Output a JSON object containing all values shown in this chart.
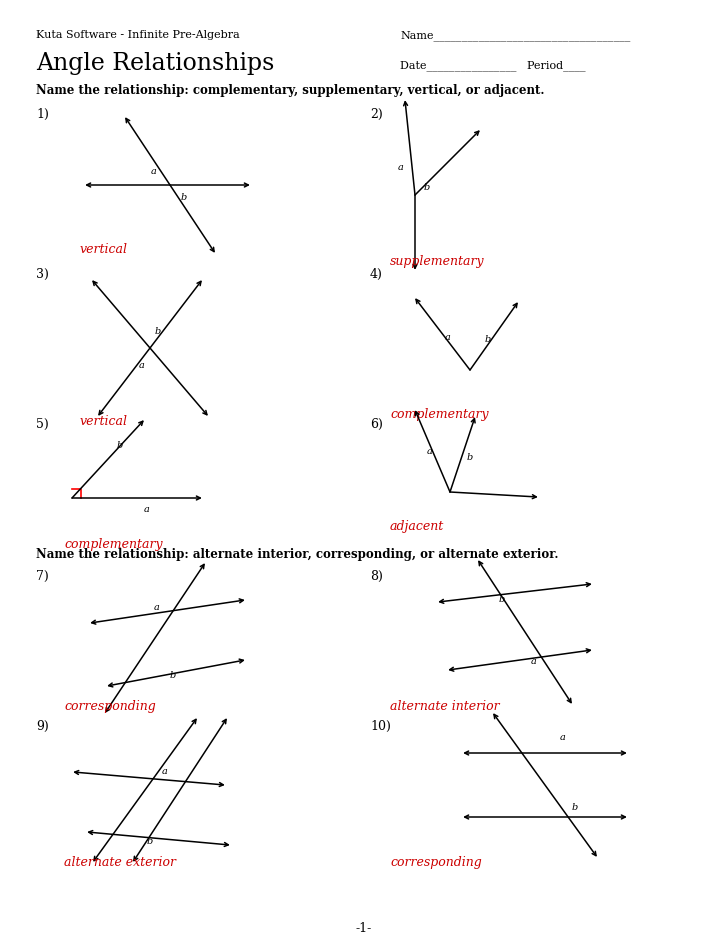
{
  "header_left": "Kuta Software - Infinite Pre-Algebra",
  "name_line": "Name___________________________________",
  "title": "Angle Relationships",
  "date_line": "Date________________",
  "period_line": "Period____",
  "instruction1": "Name the relationship: complementary, supplementary, vertical, or adjacent.",
  "instruction2": "Name the relationship: alternate interior, corresponding, or alternate exterior.",
  "answers": [
    "vertical",
    "supplementary",
    "vertical",
    "complementary",
    "complementary",
    "adjacent",
    "corresponding",
    "alternate interior",
    "alternate exterior",
    "corresponding"
  ],
  "answer_color": "#cc0000",
  "bg_color": "#ffffff",
  "footer": "-1-",
  "prob_nums": [
    "1)",
    "2)",
    "3)",
    "4)",
    "5)",
    "6)",
    "7)",
    "8)",
    "9)",
    "10)"
  ]
}
